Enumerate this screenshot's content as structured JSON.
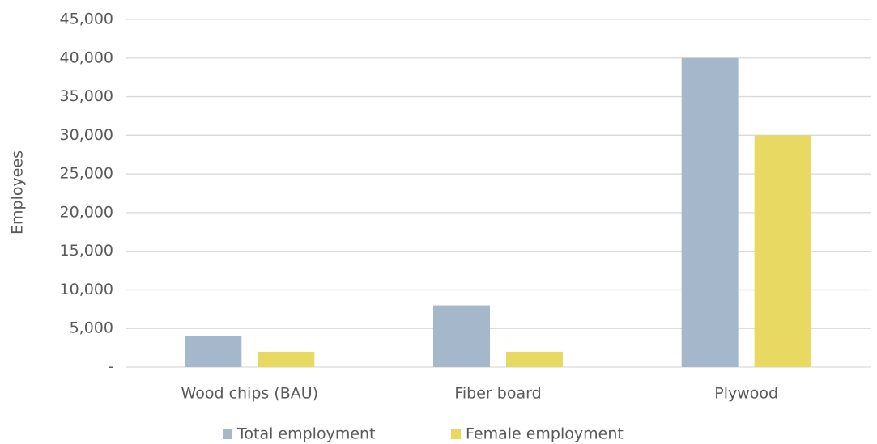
{
  "chart_data": {
    "type": "bar",
    "y_label": "Employees",
    "categories": [
      "Wood chips (BAU)",
      "Fiber board",
      "Plywood"
    ],
    "series": [
      {
        "name": "Total employment",
        "color": "#a5b8cb",
        "values": [
          4000,
          8000,
          40000
        ]
      },
      {
        "name": "Female employment",
        "color": "#e8d963",
        "values": [
          2000,
          2000,
          30000
        ]
      }
    ],
    "ylim": [
      0,
      45000
    ],
    "yticks": [
      {
        "value": 0,
        "label": "-"
      },
      {
        "value": 5000,
        "label": "5,000"
      },
      {
        "value": 10000,
        "label": "10,000"
      },
      {
        "value": 15000,
        "label": "15,000"
      },
      {
        "value": 20000,
        "label": "20,000"
      },
      {
        "value": 25000,
        "label": "25,000"
      },
      {
        "value": 30000,
        "label": "30,000"
      },
      {
        "value": 35000,
        "label": "35,000"
      },
      {
        "value": 40000,
        "label": "40,000"
      },
      {
        "value": 45000,
        "label": "45,000"
      }
    ],
    "grid": true,
    "legend": "bottom"
  }
}
